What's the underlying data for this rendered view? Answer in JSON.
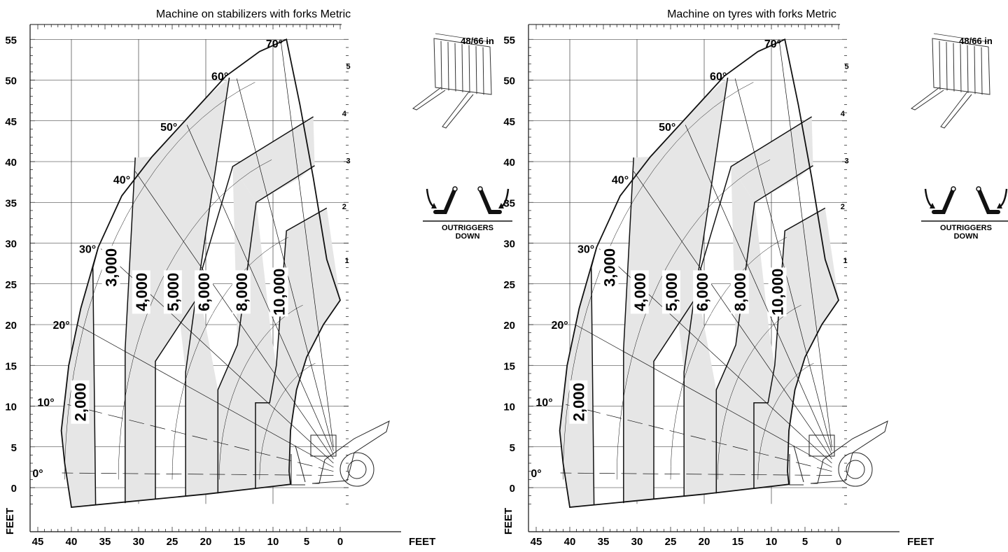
{
  "axes": {
    "x_ticks": [
      "45",
      "40",
      "35",
      "30",
      "25",
      "20",
      "15",
      "10",
      "5",
      "0"
    ],
    "x_unit": "FEET",
    "y_ticks": [
      "55",
      "50",
      "45",
      "40",
      "35",
      "30",
      "25",
      "20",
      "15",
      "10",
      "5",
      "0"
    ],
    "y_unit": "FEET"
  },
  "chart_data": [
    {
      "type": "load-chart",
      "title": "Machine on stabilizers with forks Metric",
      "xlabel": "FEET",
      "ylabel": "FEET",
      "xlim": [
        0,
        45
      ],
      "ylim": [
        -2,
        55
      ],
      "boom_angles_deg": [
        0,
        10,
        20,
        30,
        40,
        50,
        60,
        70
      ],
      "angle_labels": [
        "0°",
        "10°",
        "20°",
        "30°",
        "40°",
        "50°",
        "60°",
        "70°"
      ],
      "extension_marks": [
        "1",
        "2",
        "3",
        "4",
        "5"
      ],
      "load_zones": [
        "2,000",
        "3,000",
        "4,000",
        "5,000",
        "6,000",
        "8,000",
        "10,000"
      ],
      "attachment_label": "48/66 in",
      "outrigger_label_1": "OUTRIGGERS",
      "outrigger_label_2": "DOWN"
    },
    {
      "type": "load-chart",
      "title": "Machine on tyres with forks Metric",
      "xlabel": "FEET",
      "ylabel": "FEET",
      "xlim": [
        0,
        45
      ],
      "ylim": [
        -2,
        55
      ],
      "boom_angles_deg": [
        0,
        10,
        20,
        30,
        40,
        50,
        60,
        70
      ],
      "angle_labels": [
        "0°",
        "10°",
        "20°",
        "30°",
        "40°",
        "50°",
        "60°",
        "70°"
      ],
      "extension_marks": [
        "1",
        "2",
        "3",
        "4",
        "5"
      ],
      "load_zones": [
        "2,000",
        "3,000",
        "4,000",
        "5,000",
        "6,000",
        "8,000",
        "10,000"
      ],
      "attachment_label": "48/66 in",
      "outrigger_label_1": "OUTRIGGERS",
      "outrigger_label_2": "DOWN"
    }
  ],
  "colors": {
    "zone_fill": "#e6e6e6",
    "line": "#111111",
    "grid": "#222222"
  }
}
